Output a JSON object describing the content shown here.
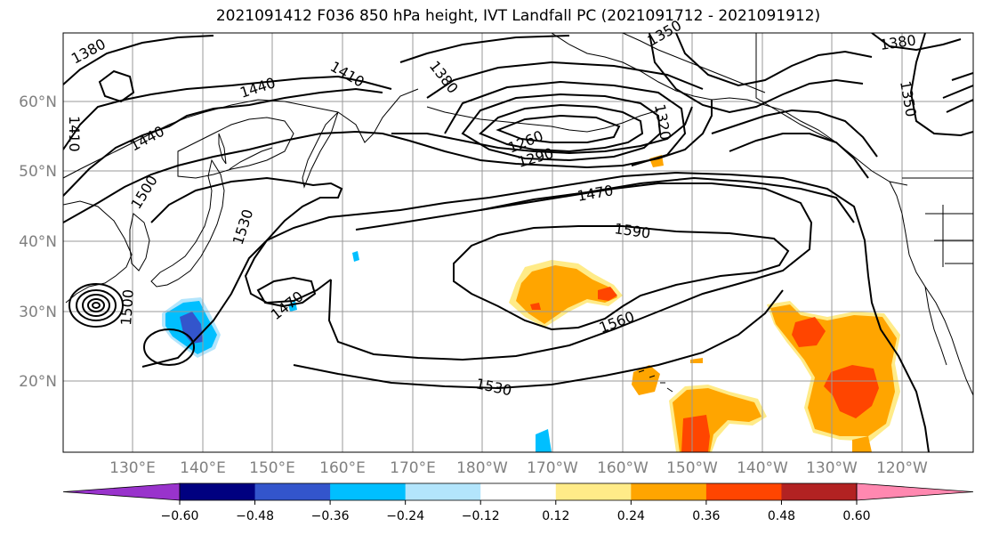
{
  "title": "2021091412 F036 850 hPa height, IVT Landfall PC (2021091712 - 2021091912)",
  "map": {
    "lat_labels": [
      "20°N",
      "30°N",
      "40°N",
      "50°N",
      "60°N"
    ],
    "lon_labels": [
      "130°E",
      "140°E",
      "150°E",
      "160°E",
      "170°E",
      "180°W",
      "170°W",
      "160°W",
      "150°W",
      "140°W",
      "130°W",
      "120°W"
    ],
    "contour_labels": [
      "1380",
      "1410",
      "1440",
      "1440",
      "1410",
      "1500",
      "1530",
      "1470",
      "1500",
      "1380",
      "1260",
      "1290",
      "1320",
      "1350",
      "1470",
      "1590",
      "1560",
      "1530",
      "1380",
      "1350"
    ],
    "colors": {
      "land_outline": "#000000",
      "gridline": "#999999"
    }
  },
  "colorbar": {
    "colors": [
      "#9933cc",
      "#000080",
      "#3355cc",
      "#00bfff",
      "#b3e5fc",
      "#ffffff",
      "#ffeb88",
      "#ffa500",
      "#ff4500",
      "#b22222",
      "#ff88b0"
    ],
    "tick_labels": [
      "−0.60",
      "−0.48",
      "−0.36",
      "−0.24",
      "−0.12",
      "0.12",
      "0.24",
      "0.36",
      "0.48",
      "0.60"
    ]
  }
}
